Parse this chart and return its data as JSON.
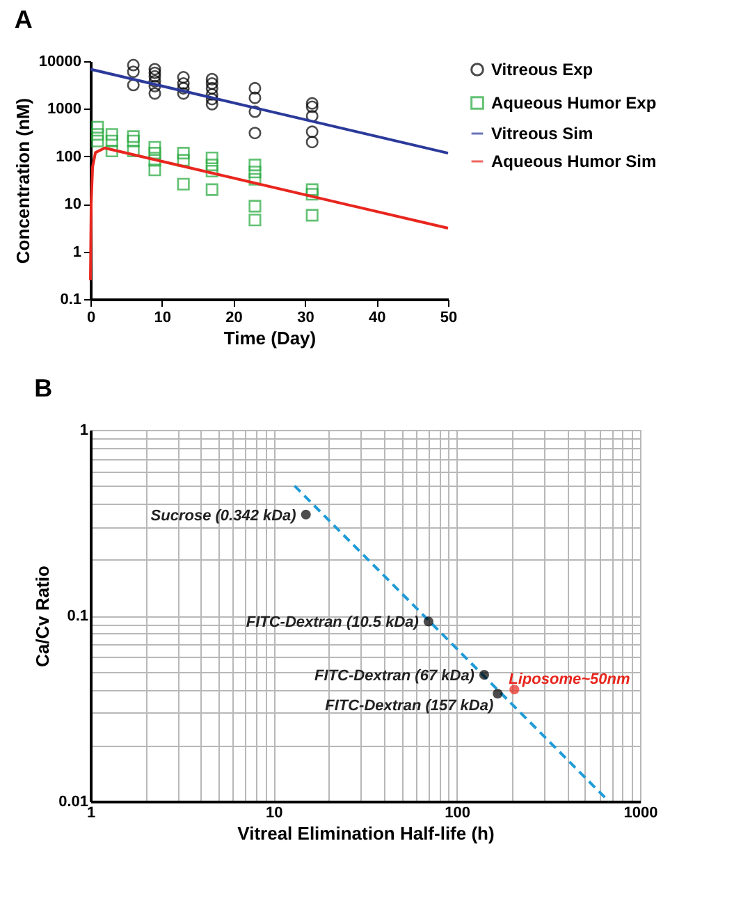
{
  "chart_data": [
    {
      "type": "scatter",
      "title": "A",
      "xlabel": "Time (Day)",
      "ylabel": "Concentration (nM)",
      "log": "y",
      "xlim": [
        0,
        50
      ],
      "xticks": [
        0,
        10,
        20,
        30,
        40,
        50
      ],
      "ylim": [
        0.1,
        10000
      ],
      "yticks": [
        0.1,
        1,
        10,
        100,
        1000,
        10000
      ],
      "grid": false,
      "legend": "top right",
      "series": [
        {
          "name": "Vitreous Exp",
          "type": "scatter",
          "marker": "circle",
          "color": "#000000",
          "x": [
            6,
            6,
            6,
            9,
            9,
            9,
            9,
            9,
            9,
            13,
            13,
            13,
            13,
            17,
            17,
            17,
            17,
            17,
            17,
            23,
            23,
            23,
            23,
            31,
            31,
            31,
            31,
            31
          ],
          "values": [
            8300,
            6000,
            3150,
            6800,
            5700,
            4800,
            3800,
            3000,
            2100,
            4600,
            3400,
            2700,
            2100,
            4200,
            3400,
            2700,
            2000,
            1600,
            1250,
            2700,
            1700,
            870,
            310,
            1300,
            1100,
            700,
            330,
            200
          ]
        },
        {
          "name": "Aqueous Humor Exp",
          "type": "scatter",
          "marker": "square",
          "color": "#22a83a",
          "x": [
            1,
            1,
            1,
            3,
            3,
            3,
            6,
            6,
            6,
            9,
            9,
            9,
            9,
            13,
            13,
            13,
            17,
            17,
            17,
            17,
            23,
            23,
            23,
            23,
            23,
            31,
            31,
            31
          ],
          "values": [
            410,
            290,
            210,
            290,
            210,
            130,
            260,
            210,
            130,
            155,
            117,
            83,
            52,
            117,
            83,
            26,
            93,
            66,
            49,
            20,
            66,
            47,
            33,
            9,
            4.6,
            20,
            16,
            5.8
          ]
        },
        {
          "name": "Vitreous Sim",
          "type": "line",
          "line_style": "solid",
          "color": "#2b3a9a",
          "x": [
            0,
            25,
            50
          ],
          "values": [
            6800,
            890,
            117
          ]
        },
        {
          "name": "Aqueous Humor Sim",
          "type": "line",
          "line_style": "solid",
          "color": "#e8261e",
          "x": [
            0,
            0.1,
            0.3,
            0.7,
            2,
            50
          ],
          "values": [
            0.25,
            10,
            60,
            120,
            150,
            3.1
          ]
        }
      ]
    },
    {
      "type": "scatter",
      "title": "B",
      "xlabel": "Vitreal Elimination Half-life (h)",
      "ylabel": "Ca/Cv Ratio",
      "log": "xy",
      "grid": true,
      "xlim": [
        1,
        1000
      ],
      "ylim": [
        0.01,
        1
      ],
      "xticks": [
        1,
        {
          "value": 2,
          "label": null
        },
        {
          "value": 3,
          "label": null
        },
        {
          "value": 4,
          "label": null
        },
        {
          "value": 5,
          "label": null
        },
        {
          "value": 6,
          "label": null
        },
        {
          "value": 7,
          "label": null
        },
        {
          "value": 8,
          "label": null
        },
        {
          "value": 9,
          "label": null
        },
        10,
        {
          "value": 20,
          "label": null
        },
        {
          "value": 30,
          "label": null
        },
        {
          "value": 40,
          "label": null
        },
        {
          "value": 50,
          "label": null
        },
        {
          "value": 60,
          "label": null
        },
        {
          "value": 70,
          "label": null
        },
        {
          "value": 80,
          "label": null
        },
        {
          "value": 90,
          "label": null
        },
        100,
        {
          "value": 200,
          "label": null
        },
        {
          "value": 300,
          "label": null
        },
        {
          "value": 400,
          "label": null
        },
        {
          "value": 500,
          "label": null
        },
        {
          "value": 600,
          "label": null
        },
        {
          "value": 700,
          "label": null
        },
        {
          "value": 800,
          "label": null
        },
        {
          "value": 900,
          "label": null
        },
        1000
      ],
      "yticks": [
        0.01,
        {
          "value": 0.02,
          "label": null
        },
        {
          "value": 0.03,
          "label": null
        },
        {
          "value": 0.04,
          "label": null
        },
        {
          "value": 0.05,
          "label": null
        },
        {
          "value": 0.06,
          "label": null
        },
        {
          "value": 0.07,
          "label": null
        },
        {
          "value": 0.08,
          "label": null
        },
        {
          "value": 0.09,
          "label": null
        },
        0.1,
        {
          "value": 0.2,
          "label": null
        },
        {
          "value": 0.3,
          "label": null
        },
        {
          "value": 0.4,
          "label": null
        },
        {
          "value": 0.5,
          "label": null
        },
        {
          "value": 0.6,
          "label": null
        },
        {
          "value": 0.7,
          "label": null
        },
        {
          "value": 0.8,
          "label": null
        },
        {
          "value": 0.9,
          "label": null
        },
        1
      ],
      "series": [
        {
          "type": "line",
          "line_style": "dashed",
          "color": "#1f9bd7",
          "x": [
            13,
            675
          ],
          "values": [
            0.5,
            0.01
          ]
        },
        {
          "type": "scatter",
          "marker": "circle",
          "color": "#000000",
          "x": [
            15,
            70,
            141,
            167
          ],
          "values": [
            0.35,
            0.093,
            0.048,
            0.038
          ]
        },
        {
          "name": "Liposome~50nm",
          "type": "scatter",
          "marker": "circle",
          "color": "#e8261e",
          "x": [
            206
          ],
          "values": [
            0.04
          ]
        }
      ],
      "annotations": [
        {
          "text": "Sucrose (0.342 kDa)",
          "x": 15,
          "y": 0.35
        },
        {
          "text": "FITC-Dextran (10.5 kDa)",
          "x": 70,
          "y": 0.093
        },
        {
          "text": "FITC-Dextran (67 kDa)",
          "x": 141,
          "y": 0.048
        },
        {
          "text": "FITC-Dextran (157 kDa)",
          "x": 167,
          "y": 0.038
        }
      ]
    }
  ]
}
